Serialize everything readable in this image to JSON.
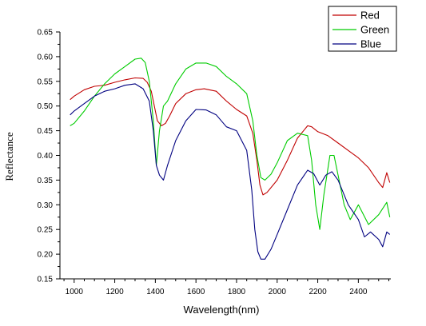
{
  "chart_data": {
    "type": "line",
    "title": "",
    "xlabel": "Wavelength(nm)",
    "ylabel": "Reflectance",
    "xlim": [
      930,
      2560
    ],
    "ylim": [
      0.15,
      0.65
    ],
    "xticks": [
      1000,
      1200,
      1400,
      1600,
      1800,
      2000,
      2200,
      2400
    ],
    "yticks": [
      "0.15",
      "0.20",
      "0.25",
      "0.30",
      "0.35",
      "0.40",
      "0.45",
      "0.50",
      "0.55",
      "0.60",
      "0.65"
    ],
    "grid": false,
    "legend_position": "top-right",
    "series": [
      {
        "name": "Red",
        "color": "#c00000",
        "x": [
          980,
          1000,
          1050,
          1100,
          1150,
          1200,
          1250,
          1300,
          1340,
          1360,
          1380,
          1395,
          1410,
          1430,
          1450,
          1470,
          1500,
          1550,
          1600,
          1640,
          1700,
          1750,
          1800,
          1850,
          1880,
          1900,
          1915,
          1930,
          1950,
          2000,
          2050,
          2100,
          2150,
          2170,
          2200,
          2250,
          2300,
          2350,
          2400,
          2450,
          2500,
          2520,
          2540,
          2555
        ],
        "y": [
          0.513,
          0.52,
          0.533,
          0.54,
          0.542,
          0.548,
          0.553,
          0.557,
          0.556,
          0.548,
          0.53,
          0.5,
          0.47,
          0.46,
          0.465,
          0.48,
          0.505,
          0.525,
          0.533,
          0.535,
          0.53,
          0.51,
          0.493,
          0.48,
          0.445,
          0.39,
          0.34,
          0.32,
          0.325,
          0.35,
          0.39,
          0.435,
          0.46,
          0.458,
          0.448,
          0.44,
          0.425,
          0.41,
          0.395,
          0.375,
          0.345,
          0.335,
          0.365,
          0.345
        ]
      },
      {
        "name": "Green",
        "color": "#00cc00",
        "x": [
          980,
          1000,
          1050,
          1100,
          1150,
          1200,
          1250,
          1300,
          1330,
          1350,
          1370,
          1390,
          1405,
          1420,
          1440,
          1460,
          1500,
          1550,
          1600,
          1650,
          1700,
          1750,
          1800,
          1850,
          1880,
          1900,
          1920,
          1940,
          1970,
          2000,
          2050,
          2100,
          2150,
          2170,
          2190,
          2210,
          2230,
          2260,
          2280,
          2300,
          2330,
          2360,
          2400,
          2450,
          2500,
          2540,
          2555
        ],
        "y": [
          0.46,
          0.465,
          0.49,
          0.52,
          0.545,
          0.565,
          0.58,
          0.595,
          0.597,
          0.588,
          0.55,
          0.47,
          0.38,
          0.45,
          0.5,
          0.51,
          0.545,
          0.575,
          0.587,
          0.587,
          0.58,
          0.56,
          0.545,
          0.525,
          0.47,
          0.4,
          0.355,
          0.35,
          0.362,
          0.385,
          0.43,
          0.445,
          0.44,
          0.39,
          0.3,
          0.25,
          0.32,
          0.4,
          0.4,
          0.36,
          0.3,
          0.27,
          0.3,
          0.26,
          0.28,
          0.305,
          0.275
        ]
      },
      {
        "name": "Blue",
        "color": "#000080",
        "x": [
          980,
          1000,
          1050,
          1100,
          1150,
          1200,
          1250,
          1300,
          1340,
          1370,
          1390,
          1405,
          1420,
          1440,
          1460,
          1500,
          1550,
          1600,
          1650,
          1700,
          1750,
          1800,
          1850,
          1875,
          1890,
          1905,
          1920,
          1940,
          1970,
          2000,
          2050,
          2100,
          2150,
          2180,
          2210,
          2240,
          2270,
          2300,
          2350,
          2400,
          2430,
          2460,
          2500,
          2520,
          2540,
          2555
        ],
        "y": [
          0.482,
          0.49,
          0.505,
          0.52,
          0.53,
          0.535,
          0.542,
          0.545,
          0.535,
          0.51,
          0.45,
          0.38,
          0.36,
          0.35,
          0.38,
          0.43,
          0.47,
          0.493,
          0.492,
          0.482,
          0.458,
          0.45,
          0.41,
          0.33,
          0.25,
          0.205,
          0.19,
          0.19,
          0.21,
          0.24,
          0.29,
          0.34,
          0.37,
          0.363,
          0.34,
          0.36,
          0.367,
          0.35,
          0.3,
          0.27,
          0.235,
          0.245,
          0.23,
          0.215,
          0.245,
          0.24
        ]
      }
    ]
  }
}
